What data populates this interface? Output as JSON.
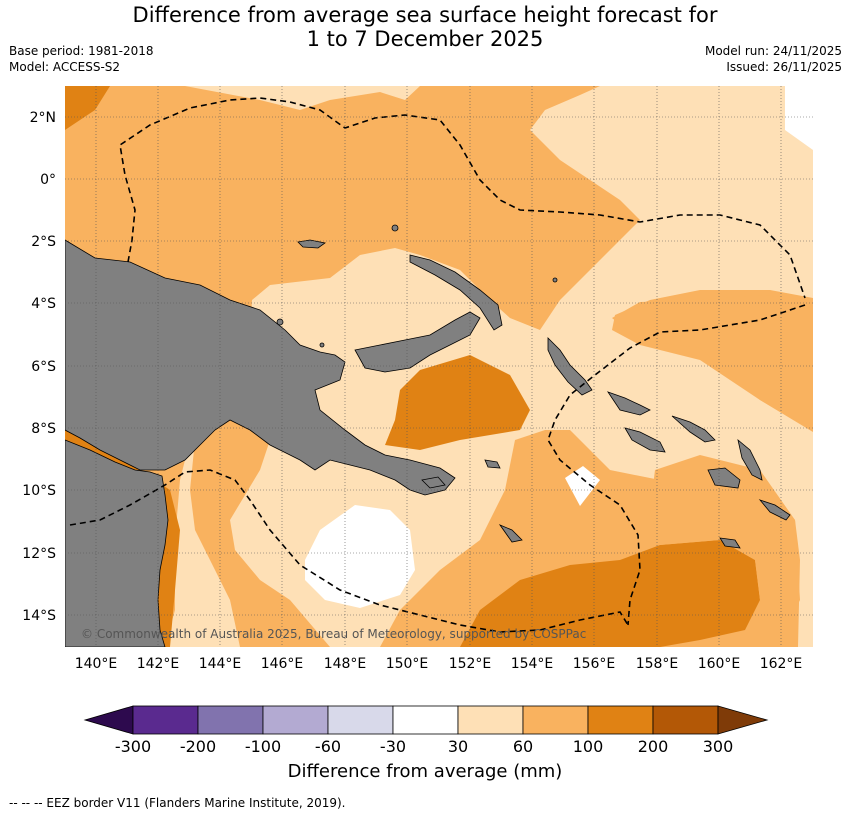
{
  "title_line1": "Difference from average sea surface height forecast for",
  "title_line2": "1 to 7 December 2025",
  "base_period": "Base period: 1981-2018",
  "model": "Model: ACCESS-S2",
  "model_run": "Model run: 24/11/2025",
  "issued": "Issued: 26/11/2025",
  "copyright": "© Commonwealth of Australia 2025, Bureau of Meteorology, supported by COSPPac",
  "lat_labels": [
    "2°N",
    "0°",
    "2°S",
    "4°S",
    "6°S",
    "8°S",
    "10°S",
    "12°S",
    "14°S"
  ],
  "lon_labels": [
    "140°E",
    "142°E",
    "144°E",
    "146°E",
    "148°E",
    "150°E",
    "152°E",
    "154°E",
    "156°E",
    "158°E",
    "160°E",
    "162°E"
  ],
  "colorbar": {
    "ticks": [
      "-300",
      "-200",
      "-100",
      "-60",
      "-30",
      "30",
      "60",
      "100",
      "200",
      "300"
    ],
    "colors": [
      "#2d0a4e",
      "#5a2a8f",
      "#8173ae",
      "#b3aad2",
      "#d8d9ea",
      "#ffffff",
      "#fee0b6",
      "#f9b25f",
      "#e08214",
      "#b35806",
      "#7f3b08"
    ],
    "title": "Difference from average (mm)"
  },
  "footnote": "--  --  -- EEZ border V11 (Flanders Marine Institute, 2019).",
  "colors": {
    "land": "#808080",
    "level_30_60": "#fee0b6",
    "level_60_100": "#f9b25f",
    "level_100_200": "#e08214",
    "level_neg30_30": "#ffffff"
  }
}
